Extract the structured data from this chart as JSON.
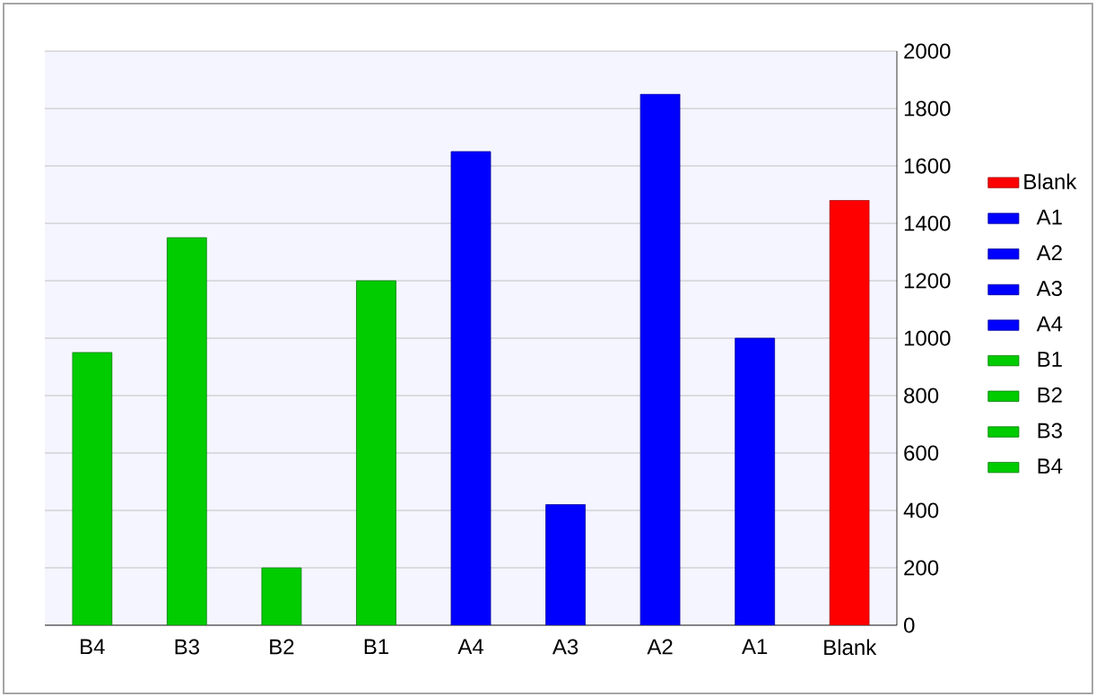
{
  "chart_data": {
    "type": "bar",
    "categories": [
      "B4",
      "B3",
      "B2",
      "B1",
      "A4",
      "A3",
      "A2",
      "A1",
      "Blank"
    ],
    "series": [
      {
        "name": "B4",
        "color": "#00cc00",
        "values": [
          950,
          null,
          null,
          null,
          null,
          null,
          null,
          null,
          null
        ]
      },
      {
        "name": "B3",
        "color": "#00cc00",
        "values": [
          null,
          1350,
          null,
          null,
          null,
          null,
          null,
          null,
          null
        ]
      },
      {
        "name": "B2",
        "color": "#00cc00",
        "values": [
          null,
          null,
          200,
          null,
          null,
          null,
          null,
          null,
          null
        ]
      },
      {
        "name": "B1",
        "color": "#00cc00",
        "values": [
          null,
          null,
          null,
          1200,
          null,
          null,
          null,
          null,
          null
        ]
      },
      {
        "name": "A4",
        "color": "#0000ff",
        "values": [
          null,
          null,
          null,
          null,
          1650,
          null,
          null,
          null,
          null
        ]
      },
      {
        "name": "A3",
        "color": "#0000ff",
        "values": [
          null,
          null,
          null,
          null,
          null,
          420,
          null,
          null,
          null
        ]
      },
      {
        "name": "A2",
        "color": "#0000ff",
        "values": [
          null,
          null,
          null,
          null,
          null,
          null,
          1850,
          null,
          null
        ]
      },
      {
        "name": "A1",
        "color": "#0000ff",
        "values": [
          null,
          null,
          null,
          null,
          null,
          null,
          null,
          1000,
          null
        ]
      },
      {
        "name": "Blank",
        "color": "#ff0000",
        "values": [
          null,
          null,
          null,
          null,
          null,
          null,
          null,
          null,
          1480
        ]
      }
    ],
    "ylim": [
      0,
      2000
    ],
    "yticks": [
      0,
      200,
      400,
      600,
      800,
      1000,
      1200,
      1400,
      1600,
      1800,
      2000
    ],
    "grid": "y",
    "legend": "right"
  }
}
